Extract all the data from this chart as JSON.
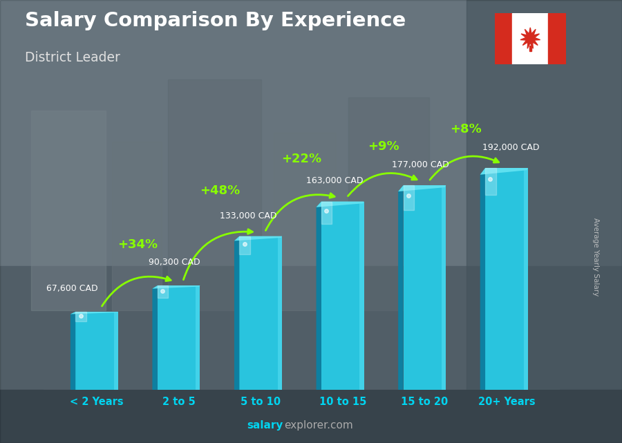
{
  "title": "Salary Comparison By Experience",
  "subtitle": "District Leader",
  "ylabel": "Average Yearly Salary",
  "footer_bold": "salary",
  "footer_normal": "explorer.com",
  "categories": [
    "< 2 Years",
    "2 to 5",
    "5 to 10",
    "10 to 15",
    "15 to 20",
    "20+ Years"
  ],
  "values": [
    67600,
    90300,
    133000,
    163000,
    177000,
    192000
  ],
  "labels": [
    "67,600 CAD",
    "90,300 CAD",
    "133,000 CAD",
    "163,000 CAD",
    "177,000 CAD",
    "192,000 CAD"
  ],
  "pct_changes": [
    "+34%",
    "+48%",
    "+22%",
    "+9%",
    "+8%"
  ],
  "bar_front_color": "#29c4de",
  "bar_left_color": "#0e7fa0",
  "bar_right_color": "#4dd8ee",
  "bar_top_color": "#5ee0f0",
  "bar_highlight": "#80eeff",
  "bg_outer": "#6b7c88",
  "bg_inner": "#7a8e99",
  "title_color": "#ffffff",
  "subtitle_color": "#e0e0e0",
  "label_color": "#ffffff",
  "pct_color": "#88ff00",
  "xlabel_color": "#00d4f0",
  "footer_bold_color": "#00d4f0",
  "footer_normal_color": "#aaaaaa",
  "ylabel_color": "#cccccc",
  "ylim": [
    0,
    230000
  ],
  "bar_width": 0.52
}
